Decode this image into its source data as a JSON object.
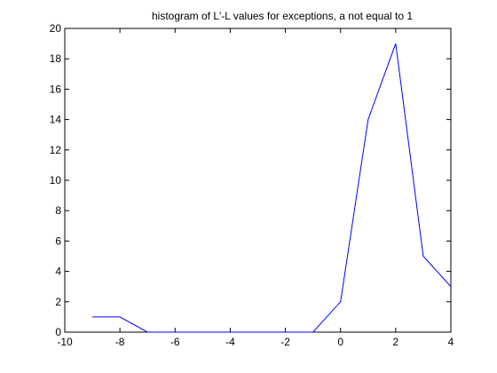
{
  "chart_data": {
    "type": "line",
    "title": "histogram of L'-L values for exceptions, a not equal to 1",
    "xlabel": "",
    "ylabel": "",
    "xlim": [
      -10,
      4
    ],
    "ylim": [
      0,
      20
    ],
    "xticks": [
      -10,
      -8,
      -6,
      -4,
      -2,
      0,
      2,
      4
    ],
    "yticks": [
      0,
      2,
      4,
      6,
      8,
      10,
      12,
      14,
      16,
      18,
      20
    ],
    "grid": false,
    "series": [
      {
        "color": "#0000ff",
        "x": [
          -9,
          -8,
          -7,
          -6,
          -5,
          -4,
          -3,
          -2,
          -1,
          0,
          1,
          2,
          3,
          4
        ],
        "y": [
          1,
          1,
          0,
          0,
          0,
          0,
          0,
          0,
          0,
          2,
          14,
          19,
          5,
          3
        ]
      }
    ]
  }
}
